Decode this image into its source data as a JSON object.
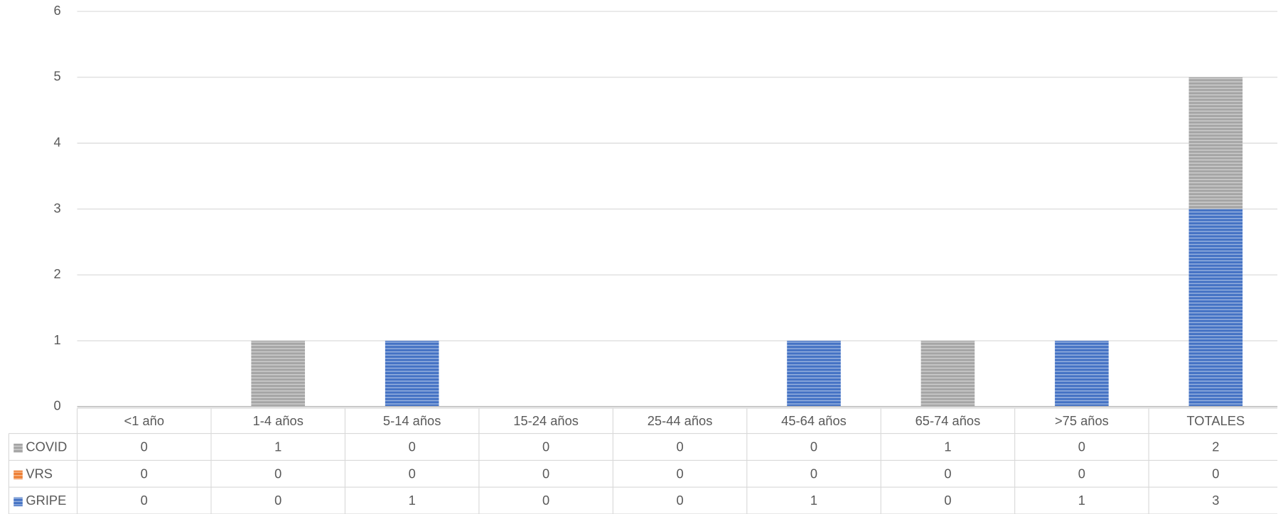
{
  "chart_data": {
    "type": "stacked_bar",
    "categories": [
      "<1 año",
      "1-4 años",
      "5-14 años",
      "15-24 años",
      "25-44 años",
      "45-64 años",
      "65-74 años",
      ">75 años",
      "TOTALES"
    ],
    "series": [
      {
        "name": "GRIPE",
        "color": "#4472c4",
        "values": [
          0,
          0,
          1,
          0,
          0,
          1,
          0,
          1,
          3
        ]
      },
      {
        "name": "VRS",
        "color": "#ed7d31",
        "values": [
          0,
          0,
          0,
          0,
          0,
          0,
          0,
          0,
          0
        ]
      },
      {
        "name": "COVID",
        "color": "#a5a5a5",
        "values": [
          0,
          1,
          0,
          0,
          0,
          0,
          1,
          0,
          2
        ]
      }
    ],
    "ylim": [
      0,
      6
    ],
    "yticks": [
      0,
      1,
      2,
      3,
      4,
      5,
      6
    ],
    "grid": true
  }
}
